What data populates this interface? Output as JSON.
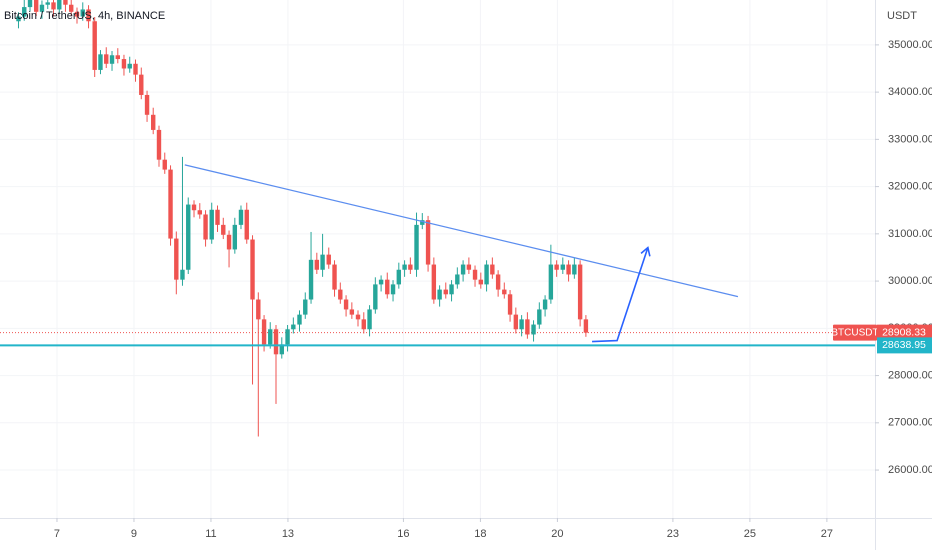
{
  "chart_data": {
    "type": "candlestick",
    "title": "Bitcoin / TetherUS, 4h, BINANCE",
    "currency_label": "USDT",
    "symbol_label": "BTCUSDT",
    "up_color": "#26a69a",
    "down_color": "#ef5350",
    "xlim": [
      5.52,
      28.25
    ],
    "ylim": [
      24985,
      35950
    ],
    "xticks": [
      7,
      9,
      11,
      13,
      16,
      18,
      20,
      23,
      25,
      27
    ],
    "yticks": [
      {
        "value": 26000,
        "label": "26000.00"
      },
      {
        "value": 27000,
        "label": "27000.00"
      },
      {
        "value": 28000,
        "label": "28000.00"
      },
      {
        "value": 29000,
        "label": "29000.00"
      },
      {
        "value": 30000,
        "label": "30000.00"
      },
      {
        "value": 31000,
        "label": "31000.00"
      },
      {
        "value": 32000,
        "label": "32000.00"
      },
      {
        "value": 33000,
        "label": "33000.00"
      },
      {
        "value": 34000,
        "label": "34000.00"
      },
      {
        "value": 35000,
        "label": "35000.00"
      }
    ],
    "x": [
      6.0,
      6.15,
      6.3,
      6.46,
      6.61,
      6.76,
      6.91,
      7.06,
      7.22,
      7.37,
      7.52,
      7.67,
      7.82,
      7.98,
      8.13,
      8.28,
      8.43,
      8.58,
      8.74,
      8.89,
      9.04,
      9.19,
      9.34,
      9.5,
      9.65,
      9.8,
      9.95,
      10.1,
      10.26,
      10.41,
      10.56,
      10.71,
      10.86,
      11.02,
      11.17,
      11.32,
      11.47,
      11.62,
      11.78,
      11.93,
      12.08,
      12.23,
      12.38,
      12.54,
      12.69,
      12.84,
      12.99,
      13.14,
      13.3,
      13.45,
      13.6,
      13.75,
      13.9,
      14.06,
      14.21,
      14.36,
      14.51,
      14.66,
      14.82,
      14.97,
      15.12,
      15.27,
      15.42,
      15.58,
      15.73,
      15.88,
      16.03,
      16.18,
      16.34,
      16.49,
      16.64,
      16.79,
      16.94,
      17.1,
      17.25,
      17.4,
      17.55,
      17.7,
      17.86,
      18.01,
      18.16,
      18.31,
      18.46,
      18.62,
      18.77,
      18.92,
      19.07,
      19.22,
      19.38,
      19.53,
      19.68,
      19.83,
      19.98,
      20.14,
      20.29,
      20.44,
      20.59,
      20.74
    ],
    "open": [
      35500,
      35600,
      35800,
      35950,
      35700,
      35850,
      35900,
      35750,
      35950,
      35850,
      35700,
      35600,
      35750,
      35500,
      34470,
      34800,
      34600,
      34780,
      34700,
      34500,
      34600,
      34370,
      33940,
      33520,
      33200,
      32570,
      32360,
      30900,
      30030,
      30240,
      31620,
      31500,
      31410,
      30880,
      31510,
      31190,
      30980,
      30670,
      31190,
      31510,
      30880,
      29610,
      29190,
      28660,
      28980,
      28450,
      28660,
      28980,
      29080,
      29290,
      29610,
      30450,
      30240,
      30560,
      30350,
      29820,
      29610,
      29400,
      29290,
      29190,
      28980,
      29400,
      29930,
      30030,
      29720,
      29930,
      30240,
      30350,
      30240,
      31190,
      31290,
      30350,
      29610,
      29820,
      29720,
      29930,
      30140,
      30350,
      30240,
      30030,
      29930,
      30350,
      30140,
      29820,
      29720,
      29290,
      28980,
      29190,
      28870,
      29080,
      29400,
      29610,
      30350,
      30240,
      30350,
      30140,
      30350,
      29190
    ],
    "high": [
      35690,
      35950,
      36040,
      36100,
      35940,
      36050,
      35990,
      36100,
      36040,
      36000,
      35790,
      35900,
      35840,
      35590,
      34890,
      34950,
      34870,
      34930,
      34790,
      34750,
      34690,
      34520,
      34030,
      33670,
      33290,
      32720,
      32450,
      31050,
      32630,
      31770,
      31710,
      31650,
      31500,
      31660,
      31600,
      31340,
      31070,
      31340,
      31600,
      31660,
      30970,
      29760,
      29280,
      29130,
      29070,
      28810,
      29070,
      29230,
      29380,
      29760,
      31040,
      30600,
      31000,
      30710,
      30440,
      29970,
      29700,
      29550,
      29380,
      29340,
      29490,
      30080,
      30120,
      30180,
      30020,
      30390,
      30440,
      30500,
      31450,
      31440,
      31380,
      30500,
      29910,
      29970,
      30020,
      30290,
      30440,
      30500,
      30330,
      30180,
      30440,
      30500,
      30230,
      29970,
      29810,
      29440,
      29280,
      29340,
      29170,
      29550,
      29700,
      30770,
      30440,
      30500,
      30440,
      30500,
      30440,
      29280
    ],
    "low": [
      35350,
      35510,
      35710,
      35610,
      35550,
      35760,
      35600,
      35660,
      35700,
      35610,
      35450,
      35510,
      35350,
      34320,
      34380,
      34510,
      34450,
      34610,
      34350,
      34410,
      34220,
      33850,
      33370,
      33110,
      32420,
      32270,
      30750,
      29720,
      29900,
      30150,
      31350,
      31320,
      30730,
      30790,
      31040,
      30890,
      30290,
      30580,
      31100,
      30790,
      27810,
      26710,
      28510,
      28570,
      27400,
      28360,
      28510,
      28890,
      28930,
      29200,
      29520,
      30150,
      30090,
      30260,
      29670,
      29520,
      29250,
      29200,
      29040,
      28890,
      28830,
      29310,
      29780,
      29630,
      29570,
      29840,
      30090,
      30150,
      30090,
      31100,
      30200,
      29520,
      29460,
      29630,
      29570,
      29840,
      29990,
      30150,
      29880,
      29840,
      29780,
      30050,
      29670,
      29630,
      29140,
      28890,
      28830,
      28780,
      28720,
      28990,
      29250,
      29520,
      30090,
      30150,
      29990,
      30050,
      29040,
      28820
    ],
    "close": [
      35600,
      35800,
      35950,
      35700,
      35850,
      35900,
      35750,
      35950,
      35850,
      35700,
      35600,
      35750,
      35500,
      34470,
      34800,
      34600,
      34780,
      34700,
      34500,
      34600,
      34370,
      33940,
      33520,
      33200,
      32570,
      32360,
      30900,
      30030,
      30240,
      31620,
      31500,
      31410,
      30880,
      31510,
      31190,
      30980,
      30670,
      31190,
      31510,
      30880,
      29610,
      29190,
      28660,
      28980,
      28450,
      28660,
      28980,
      29080,
      29290,
      29610,
      30450,
      30240,
      30560,
      30350,
      29820,
      29610,
      29400,
      29290,
      29190,
      28980,
      29400,
      29930,
      30030,
      29720,
      29930,
      30240,
      30350,
      30240,
      31190,
      31290,
      30350,
      29610,
      29820,
      29720,
      29930,
      30140,
      30350,
      30240,
      30030,
      29930,
      30350,
      30140,
      29820,
      29720,
      29290,
      28980,
      29190,
      28870,
      29080,
      29400,
      29610,
      30350,
      30240,
      30350,
      30140,
      30350,
      29190,
      28908.33
    ],
    "last_price": 28908.33,
    "support_level": 28638.95,
    "support_color": "#22b5c9",
    "trendline": {
      "color": "#5b8def",
      "x": [
        10.32,
        24.69
      ],
      "y": [
        32460,
        29670
      ]
    },
    "arrow": {
      "color": "#2962ff",
      "x": [
        20.9,
        21.55,
        22.35
      ],
      "y": [
        28720,
        28740,
        30710
      ]
    }
  }
}
